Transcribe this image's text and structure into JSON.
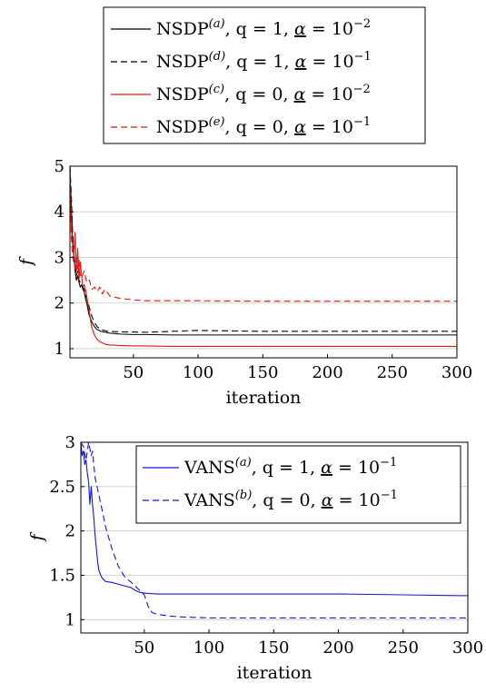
{
  "chart_data": [
    {
      "type": "line",
      "xlabel": "iteration",
      "ylabel": "f",
      "xlim": [
        1,
        300
      ],
      "ylim": [
        0.8,
        5
      ],
      "x_ticks": [
        50,
        100,
        150,
        200,
        250,
        300
      ],
      "y_ticks": [
        1,
        2,
        3,
        4,
        5
      ],
      "grid": "horizontal",
      "legend": "above",
      "series": [
        {
          "name": "NSDP(a), q = 1, α = 10^-2",
          "legend_label": {
            "base": "NSDP",
            "sup": "(a)",
            "rest": ", q = 1, ",
            "alpha": "α",
            "eq": " = 10",
            "exp": "−2"
          },
          "color": "#000000",
          "dash": "solid",
          "x": [
            1,
            2,
            3,
            4,
            5,
            6,
            7,
            8,
            9,
            10,
            11,
            12,
            13,
            14,
            15,
            16,
            18,
            20,
            22,
            25,
            28,
            32,
            40,
            50,
            60,
            80,
            100,
            150,
            200,
            250,
            300
          ],
          "y": [
            4.9,
            4.2,
            3.4,
            3.1,
            2.7,
            2.5,
            2.6,
            2.45,
            2.35,
            2.4,
            2.3,
            2.25,
            2.1,
            2.0,
            1.85,
            1.72,
            1.58,
            1.48,
            1.42,
            1.38,
            1.36,
            1.34,
            1.32,
            1.31,
            1.31,
            1.3,
            1.3,
            1.3,
            1.3,
            1.3,
            1.3
          ]
        },
        {
          "name": "NSDP(d), q = 1, α = 10^-1",
          "legend_label": {
            "base": "NSDP",
            "sup": "(d)",
            "rest": ", q = 1, ",
            "alpha": "α",
            "eq": " = 10",
            "exp": "−1"
          },
          "color": "#000000",
          "dash": "dashed",
          "x": [
            1,
            2,
            3,
            4,
            5,
            6,
            7,
            8,
            9,
            10,
            12,
            14,
            16,
            18,
            20,
            22,
            25,
            30,
            40,
            60,
            80,
            100,
            150,
            200,
            250,
            300
          ],
          "y": [
            5.0,
            4.4,
            3.6,
            3.1,
            2.8,
            2.6,
            2.7,
            2.5,
            2.45,
            2.4,
            2.3,
            2.1,
            1.9,
            1.7,
            1.58,
            1.48,
            1.42,
            1.38,
            1.37,
            1.36,
            1.38,
            1.4,
            1.38,
            1.38,
            1.38,
            1.38
          ]
        },
        {
          "name": "NSDP(c), q = 0, α = 10^-2",
          "legend_label": {
            "base": "NSDP",
            "sup": "(c)",
            "rest": ", q = 0, ",
            "alpha": "α",
            "eq": " = 10",
            "exp": "−2"
          },
          "color": "#e8140f",
          "dash": "solid",
          "x": [
            1,
            2,
            3,
            4,
            5,
            6,
            7,
            8,
            9,
            10,
            11,
            12,
            13,
            14,
            15,
            16,
            17,
            18,
            20,
            22,
            25,
            28,
            32,
            40,
            50,
            60,
            80,
            100,
            150,
            200,
            250,
            300
          ],
          "y": [
            5.0,
            3.7,
            3.3,
            3.0,
            3.55,
            2.7,
            3.2,
            2.5,
            2.9,
            2.6,
            2.35,
            2.4,
            2.3,
            2.15,
            1.95,
            1.8,
            1.6,
            1.45,
            1.3,
            1.2,
            1.14,
            1.1,
            1.08,
            1.07,
            1.06,
            1.06,
            1.05,
            1.05,
            1.05,
            1.05,
            1.05,
            1.05
          ]
        },
        {
          "name": "NSDP(e), q = 0, α = 10^-1",
          "legend_label": {
            "base": "NSDP",
            "sup": "(e)",
            "rest": ", q = 0, ",
            "alpha": "α",
            "eq": " = 10",
            "exp": "−1"
          },
          "color": "#e8140f",
          "dash": "dashed",
          "x": [
            1,
            2,
            3,
            4,
            5,
            6,
            7,
            8,
            9,
            10,
            12,
            14,
            16,
            18,
            20,
            22,
            24,
            26,
            28,
            32,
            40,
            50,
            60,
            80,
            100,
            150,
            200,
            250,
            300
          ],
          "y": [
            5.0,
            3.5,
            3.0,
            2.9,
            2.75,
            3.0,
            2.7,
            2.95,
            2.6,
            2.55,
            2.7,
            2.45,
            2.5,
            2.3,
            2.35,
            2.25,
            2.35,
            2.2,
            2.3,
            2.15,
            2.1,
            2.07,
            2.05,
            2.05,
            2.05,
            2.04,
            2.04,
            2.04,
            2.04
          ]
        }
      ]
    },
    {
      "type": "line",
      "xlabel": "iteration",
      "ylabel": "f",
      "xlim": [
        1,
        300
      ],
      "ylim": [
        0.85,
        3
      ],
      "x_ticks": [
        50,
        100,
        150,
        200,
        250,
        300
      ],
      "y_ticks": [
        1,
        1.5,
        2,
        2.5,
        3
      ],
      "grid": "horizontal",
      "legend": "top-right",
      "series": [
        {
          "name": "VANS(a), q = 1, α = 10^-1",
          "legend_label": {
            "base": "VANS",
            "sup": "(a)",
            "rest": ", q = 1, ",
            "alpha": "α",
            "eq": " = 10",
            "exp": "−1"
          },
          "color": "#1414e0",
          "dash": "solid",
          "x": [
            1,
            2,
            3,
            4,
            5,
            6,
            7,
            8,
            9,
            10,
            11,
            12,
            13,
            14,
            15,
            17,
            20,
            25,
            30,
            35,
            40,
            43,
            46,
            50,
            60,
            80,
            100,
            150,
            200,
            250,
            300
          ],
          "y": [
            3.0,
            2.85,
            2.9,
            2.75,
            2.8,
            2.65,
            2.55,
            2.3,
            2.5,
            2.3,
            2.15,
            1.95,
            1.8,
            1.65,
            1.55,
            1.48,
            1.43,
            1.42,
            1.4,
            1.38,
            1.36,
            1.33,
            1.31,
            1.3,
            1.29,
            1.29,
            1.29,
            1.29,
            1.29,
            1.28,
            1.27
          ]
        },
        {
          "name": "VANS(b), q = 0, α = 10^-1",
          "legend_label": {
            "base": "VANS",
            "sup": "(b)",
            "rest": ", q = 0, ",
            "alpha": "α",
            "eq": " = 10",
            "exp": "−1"
          },
          "color": "#1414e0",
          "dash": "dashed",
          "x": [
            1,
            3,
            5,
            7,
            9,
            10,
            12,
            15,
            18,
            20,
            25,
            30,
            35,
            40,
            45,
            50,
            53,
            56,
            60,
            70,
            80,
            100,
            150,
            200,
            250,
            300
          ],
          "y": [
            3.0,
            2.95,
            2.8,
            3.0,
            2.85,
            2.9,
            2.6,
            2.4,
            2.2,
            2.05,
            1.8,
            1.6,
            1.48,
            1.42,
            1.35,
            1.28,
            1.15,
            1.08,
            1.06,
            1.04,
            1.03,
            1.02,
            1.02,
            1.02,
            1.02,
            1.02
          ]
        }
      ]
    }
  ]
}
